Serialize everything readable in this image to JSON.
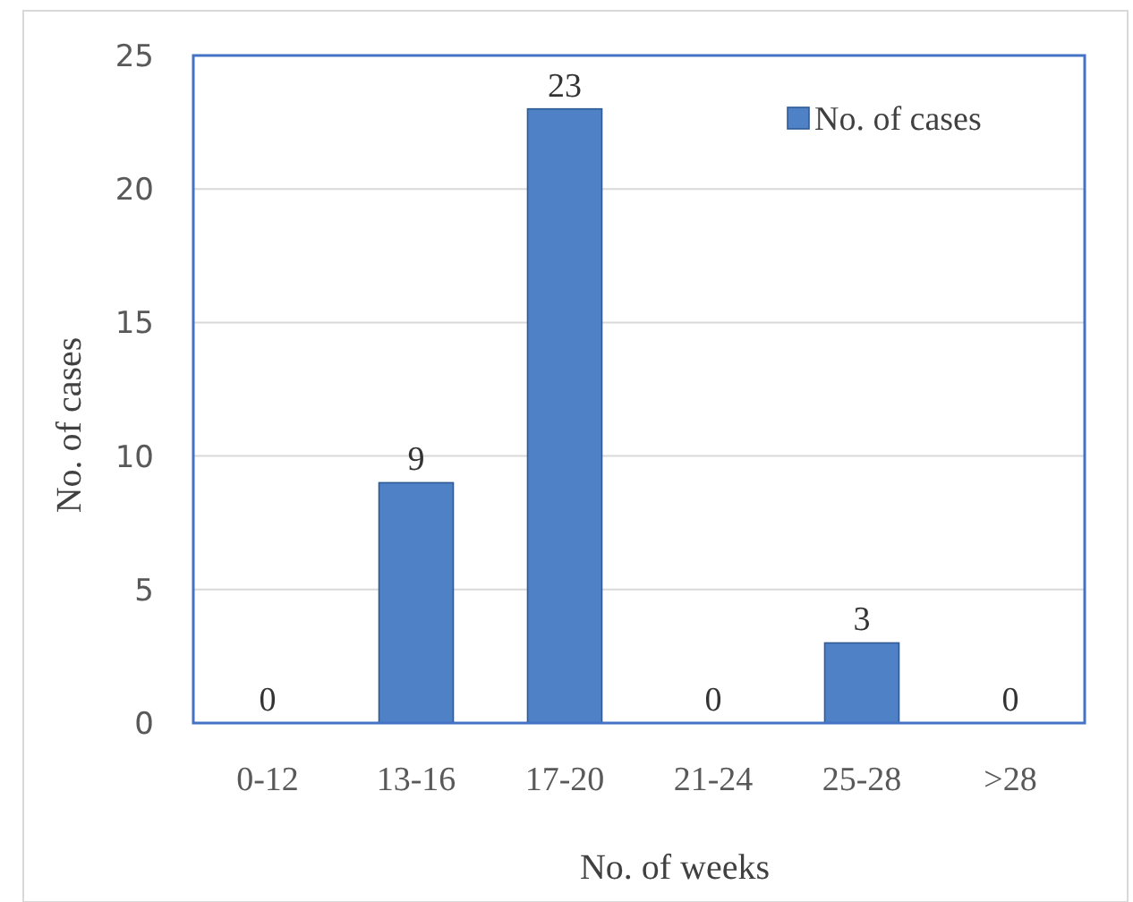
{
  "chart_data": {
    "type": "bar",
    "xlabel": "No. of weeks",
    "ylabel": "No. of cases",
    "categories": [
      "0-12",
      "13-16",
      "17-20",
      "21-24",
      "25-28",
      ">28"
    ],
    "series": [
      {
        "name": "No. of cases",
        "color": "#4f81c7",
        "values": [
          0,
          9,
          23,
          0,
          3,
          0
        ]
      }
    ],
    "ylim": [
      0,
      25
    ],
    "yticks": [
      0,
      5,
      10,
      15,
      20,
      25
    ],
    "grid": "y",
    "legend": "top right",
    "data_labels": true
  }
}
